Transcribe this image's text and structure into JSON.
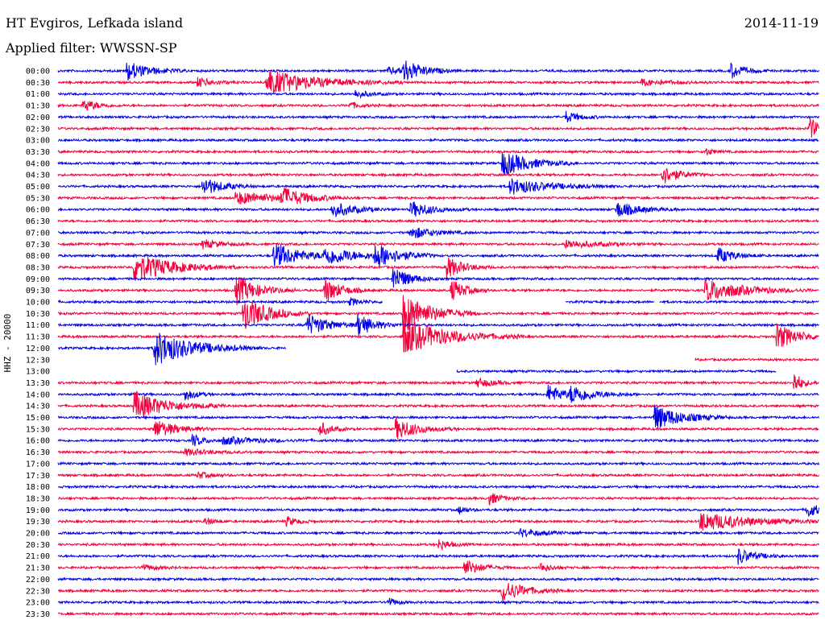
{
  "header": {
    "station": "HT Evgiros, Lefkada island",
    "date": "2014-11-19",
    "filter": "Applied filter: WWSSN-SP",
    "channel": "HHZ - 20000"
  },
  "colors": {
    "even": "#0000e6",
    "odd": "#f5003c"
  },
  "chart_data": {
    "type": "line",
    "title": "HT Evgiros, Lefkada island",
    "subtitle": "Applied filter: WWSSN-SP",
    "date": "2014-11-19",
    "ylabel": "HHZ - 20000",
    "y_ticks": [
      "00:00",
      "00:30",
      "01:00",
      "01:30",
      "02:00",
      "02:30",
      "03:00",
      "03:30",
      "04:00",
      "04:30",
      "05:00",
      "05:30",
      "06:00",
      "06:30",
      "07:00",
      "07:30",
      "08:00",
      "08:30",
      "09:00",
      "09:30",
      "10:00",
      "10:30",
      "11:00",
      "11:30",
      "12:00",
      "12:30",
      "13:00",
      "13:30",
      "14:00",
      "14:30",
      "15:00",
      "15:30",
      "16:00",
      "16:30",
      "17:00",
      "17:30",
      "18:00",
      "18:30",
      "19:00",
      "19:30",
      "20:00",
      "20:30",
      "21:00",
      "21:30",
      "22:00",
      "22:30",
      "23:00",
      "23:30"
    ],
    "xlim": [
      0,
      30
    ],
    "x_unit": "minutes",
    "grid": false,
    "legend": "none",
    "events": [
      {
        "row": 0,
        "t": 2.7,
        "amp": 12,
        "dur": 0.8
      },
      {
        "row": 0,
        "t": 13.0,
        "amp": 4,
        "dur": 1.0
      },
      {
        "row": 0,
        "t": 13.6,
        "amp": 14,
        "dur": 0.6
      },
      {
        "row": 0,
        "t": 26.5,
        "amp": 10,
        "dur": 0.5
      },
      {
        "row": 1,
        "t": 5.5,
        "amp": 6,
        "dur": 0.6
      },
      {
        "row": 1,
        "t": 8.2,
        "amp": 16,
        "dur": 1.8
      },
      {
        "row": 1,
        "t": 23.0,
        "amp": 4,
        "dur": 1.0
      },
      {
        "row": 2,
        "t": 11.7,
        "amp": 5,
        "dur": 0.5
      },
      {
        "row": 3,
        "t": 1.0,
        "amp": 8,
        "dur": 0.5
      },
      {
        "row": 3,
        "t": 11.5,
        "amp": 4,
        "dur": 0.4
      },
      {
        "row": 4,
        "t": 20.0,
        "amp": 7,
        "dur": 0.5
      },
      {
        "row": 5,
        "t": 29.6,
        "amp": 14,
        "dur": 0.4
      },
      {
        "row": 7,
        "t": 25.5,
        "amp": 5,
        "dur": 0.3
      },
      {
        "row": 8,
        "t": 17.5,
        "amp": 16,
        "dur": 1.0
      },
      {
        "row": 9,
        "t": 23.8,
        "amp": 12,
        "dur": 0.6
      },
      {
        "row": 10,
        "t": 5.7,
        "amp": 12,
        "dur": 0.7
      },
      {
        "row": 10,
        "t": 17.8,
        "amp": 10,
        "dur": 1.4
      },
      {
        "row": 11,
        "t": 7.0,
        "amp": 8,
        "dur": 1.6
      },
      {
        "row": 11,
        "t": 8.8,
        "amp": 12,
        "dur": 0.8
      },
      {
        "row": 12,
        "t": 10.8,
        "amp": 10,
        "dur": 0.8
      },
      {
        "row": 12,
        "t": 13.9,
        "amp": 10,
        "dur": 0.8
      },
      {
        "row": 12,
        "t": 22.0,
        "amp": 10,
        "dur": 0.8
      },
      {
        "row": 14,
        "t": 13.9,
        "amp": 8,
        "dur": 0.8
      },
      {
        "row": 15,
        "t": 5.7,
        "amp": 6,
        "dur": 0.6
      },
      {
        "row": 15,
        "t": 20.0,
        "amp": 5,
        "dur": 1.2
      },
      {
        "row": 16,
        "t": 8.5,
        "amp": 16,
        "dur": 1.0
      },
      {
        "row": 16,
        "t": 10.5,
        "amp": 10,
        "dur": 1.4
      },
      {
        "row": 16,
        "t": 12.5,
        "amp": 14,
        "dur": 0.8
      },
      {
        "row": 16,
        "t": 26.0,
        "amp": 10,
        "dur": 0.6
      },
      {
        "row": 17,
        "t": 3.0,
        "amp": 18,
        "dur": 1.4
      },
      {
        "row": 17,
        "t": 15.3,
        "amp": 14,
        "dur": 0.6
      },
      {
        "row": 18,
        "t": 13.2,
        "amp": 16,
        "dur": 0.6
      },
      {
        "row": 19,
        "t": 7.0,
        "amp": 18,
        "dur": 0.8
      },
      {
        "row": 19,
        "t": 10.5,
        "amp": 16,
        "dur": 0.6
      },
      {
        "row": 19,
        "t": 15.5,
        "amp": 14,
        "dur": 0.5
      },
      {
        "row": 19,
        "t": 25.5,
        "amp": 14,
        "dur": 1.4
      },
      {
        "row": 20,
        "t": 11.5,
        "amp": 5,
        "dur": 0.4
      },
      {
        "row": 21,
        "t": 7.3,
        "amp": 22,
        "dur": 0.9
      },
      {
        "row": 21,
        "t": 13.6,
        "amp": 26,
        "dur": 1.0
      },
      {
        "row": 22,
        "t": 9.8,
        "amp": 14,
        "dur": 0.8
      },
      {
        "row": 22,
        "t": 11.8,
        "amp": 14,
        "dur": 0.6
      },
      {
        "row": 23,
        "t": 13.6,
        "amp": 22,
        "dur": 1.6
      },
      {
        "row": 23,
        "t": 28.3,
        "amp": 16,
        "dur": 0.8
      },
      {
        "row": 24,
        "t": 3.8,
        "amp": 22,
        "dur": 1.4
      },
      {
        "row": 27,
        "t": 16.5,
        "amp": 6,
        "dur": 0.6
      },
      {
        "row": 27,
        "t": 29.0,
        "amp": 14,
        "dur": 0.3
      },
      {
        "row": 28,
        "t": 5.0,
        "amp": 8,
        "dur": 0.4
      },
      {
        "row": 28,
        "t": 19.3,
        "amp": 12,
        "dur": 0.6
      },
      {
        "row": 28,
        "t": 20.2,
        "amp": 10,
        "dur": 0.9
      },
      {
        "row": 29,
        "t": 3.0,
        "amp": 18,
        "dur": 1.2
      },
      {
        "row": 30,
        "t": 23.5,
        "amp": 16,
        "dur": 1.0
      },
      {
        "row": 31,
        "t": 3.8,
        "amp": 12,
        "dur": 0.8
      },
      {
        "row": 31,
        "t": 10.3,
        "amp": 10,
        "dur": 0.4
      },
      {
        "row": 31,
        "t": 13.3,
        "amp": 14,
        "dur": 0.8
      },
      {
        "row": 32,
        "t": 5.3,
        "amp": 8,
        "dur": 0.4
      },
      {
        "row": 32,
        "t": 6.5,
        "amp": 5,
        "dur": 1.2
      },
      {
        "row": 33,
        "t": 5.0,
        "amp": 4,
        "dur": 1.0
      },
      {
        "row": 35,
        "t": 5.5,
        "amp": 4,
        "dur": 0.5
      },
      {
        "row": 37,
        "t": 17.0,
        "amp": 8,
        "dur": 0.4
      },
      {
        "row": 38,
        "t": 15.8,
        "amp": 5,
        "dur": 0.3
      },
      {
        "row": 38,
        "t": 29.5,
        "amp": 10,
        "dur": 0.5
      },
      {
        "row": 39,
        "t": 5.8,
        "amp": 5,
        "dur": 0.3
      },
      {
        "row": 39,
        "t": 9.0,
        "amp": 6,
        "dur": 0.4
      },
      {
        "row": 39,
        "t": 25.3,
        "amp": 12,
        "dur": 1.8
      },
      {
        "row": 40,
        "t": 18.2,
        "amp": 5,
        "dur": 0.8
      },
      {
        "row": 41,
        "t": 15.0,
        "amp": 7,
        "dur": 0.4
      },
      {
        "row": 42,
        "t": 26.8,
        "amp": 10,
        "dur": 0.6
      },
      {
        "row": 43,
        "t": 3.3,
        "amp": 4,
        "dur": 0.5
      },
      {
        "row": 43,
        "t": 16.0,
        "amp": 10,
        "dur": 0.6
      },
      {
        "row": 43,
        "t": 19.0,
        "amp": 6,
        "dur": 0.4
      },
      {
        "row": 45,
        "t": 17.5,
        "amp": 14,
        "dur": 0.8
      },
      {
        "row": 46,
        "t": 13.0,
        "amp": 6,
        "dur": 0.3
      }
    ],
    "gaps": [
      {
        "row": 20,
        "from": 12.8,
        "to": 20.0
      },
      {
        "row": 20,
        "from": 23.5,
        "to": 23.7
      },
      {
        "row": 24,
        "from": 9.0,
        "to": 30.0
      },
      {
        "row": 25,
        "from": 0.0,
        "to": 25.1
      },
      {
        "row": 26,
        "from": 0.0,
        "to": 15.7
      },
      {
        "row": 26,
        "from": 28.3,
        "to": 30.0
      }
    ]
  }
}
